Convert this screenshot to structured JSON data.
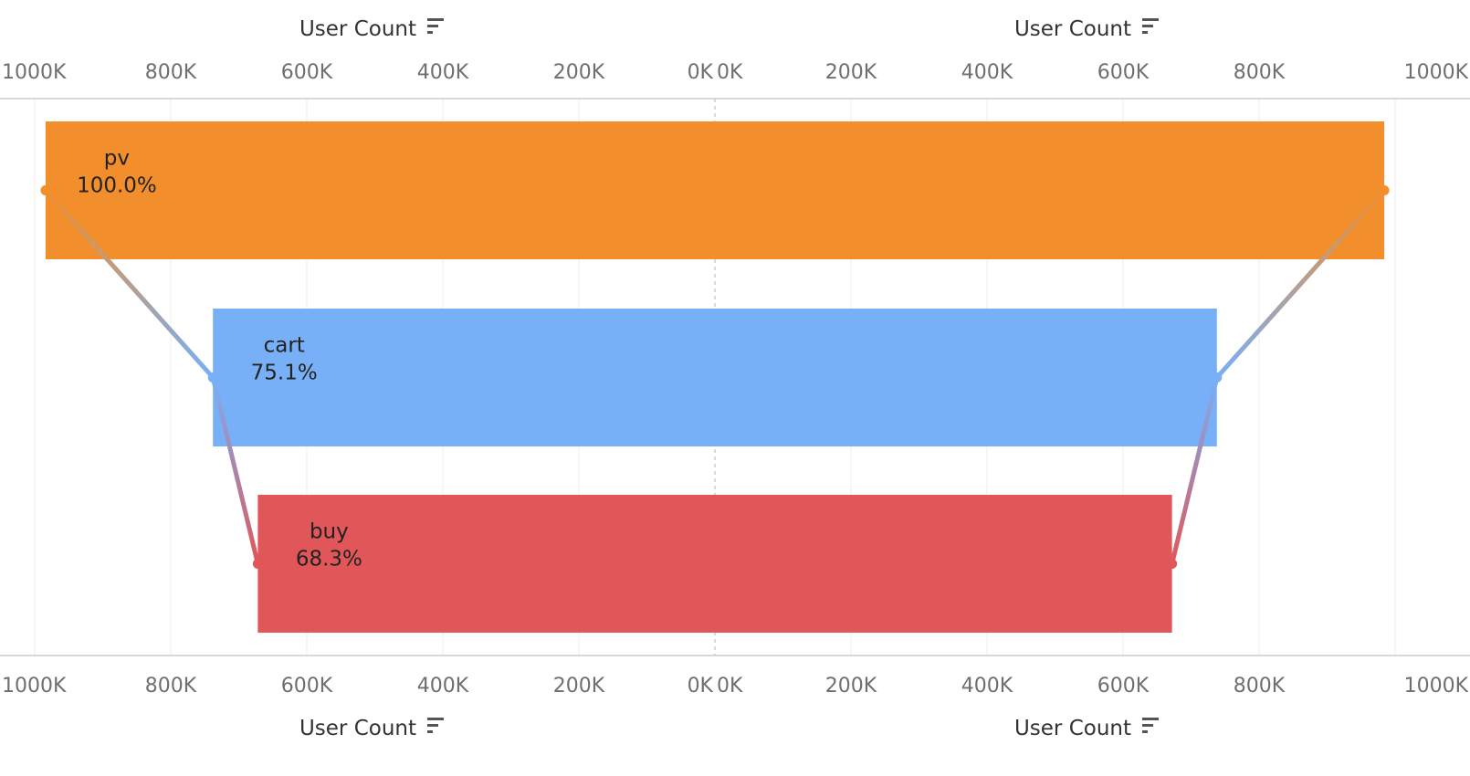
{
  "chart_data": {
    "type": "bar",
    "subtype": "butterfly-funnel",
    "categories": [
      "pv",
      "cart",
      "buy"
    ],
    "series": [
      {
        "values": [
          984000,
          738000,
          672000
        ]
      },
      {
        "values": [
          984000,
          738000,
          672000
        ]
      }
    ],
    "percent_labels": [
      "100.0%",
      "75.1%",
      "68.3%"
    ],
    "colors": [
      "#f28e2b",
      "#78b0f8",
      "#e15759"
    ],
    "xlim": [
      0,
      1000000
    ],
    "ticks": [
      0,
      200000,
      400000,
      600000,
      800000,
      1000000
    ],
    "tick_labels_left": [
      "1000K",
      "800K",
      "600K",
      "400K",
      "200K",
      "0K"
    ],
    "tick_labels_right": [
      "0K",
      "200K",
      "400K",
      "600K",
      "800K",
      "1000K"
    ],
    "xlabel_left": "User Count",
    "xlabel_right": "User Count",
    "grid": true,
    "axis_sort_icon": "sort-descending-icon"
  }
}
